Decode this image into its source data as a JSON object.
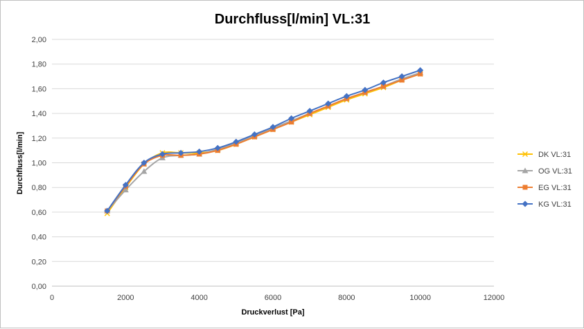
{
  "chart_data": {
    "type": "line",
    "title": "Durchfluss[l/min] VL:31",
    "xlabel": "Druckverlust [Pa]",
    "ylabel": "Durchfluss[l/min]",
    "xlim": [
      0,
      12000
    ],
    "ylim": [
      0,
      2.0
    ],
    "x_ticks": [
      0,
      2000,
      4000,
      6000,
      8000,
      10000,
      12000
    ],
    "x_tick_labels": [
      "0",
      "2000",
      "4000",
      "6000",
      "8000",
      "10000",
      "12000"
    ],
    "y_ticks": [
      0,
      0.2,
      0.4,
      0.6,
      0.8,
      1.0,
      1.2,
      1.4,
      1.6,
      1.8,
      2.0
    ],
    "y_tick_labels": [
      "0,00",
      "0,20",
      "0,40",
      "0,60",
      "0,80",
      "1,00",
      "1,20",
      "1,40",
      "1,60",
      "1,80",
      "2,00"
    ],
    "grid": "horizontal",
    "legend_position": "right",
    "x": [
      1500,
      2000,
      2500,
      3000,
      3500,
      4000,
      4500,
      5000,
      5500,
      6000,
      6500,
      7000,
      7500,
      8000,
      8500,
      9000,
      9500,
      10000
    ],
    "series": [
      {
        "name": "DK VL:31",
        "color": "#ffc000",
        "marker": "x",
        "values": [
          0.59,
          0.8,
          0.99,
          1.08,
          1.08,
          1.08,
          1.1,
          1.15,
          1.21,
          1.27,
          1.33,
          1.39,
          1.45,
          1.51,
          1.56,
          1.61,
          1.67,
          1.72
        ]
      },
      {
        "name": "OG VL:31",
        "color": "#a5a5a5",
        "marker": "triangle",
        "values": [
          0.61,
          0.78,
          0.93,
          1.04,
          1.06,
          1.07,
          1.11,
          1.16,
          1.22,
          1.28,
          1.34,
          1.4,
          1.46,
          1.52,
          1.57,
          1.62,
          1.68,
          1.73
        ]
      },
      {
        "name": "EG VL:31",
        "color": "#ed7d31",
        "marker": "square",
        "values": [
          0.61,
          0.81,
          0.99,
          1.06,
          1.06,
          1.07,
          1.1,
          1.15,
          1.21,
          1.27,
          1.33,
          1.4,
          1.46,
          1.52,
          1.57,
          1.62,
          1.67,
          1.72
        ]
      },
      {
        "name": "KG VL:31",
        "color": "#4472c4",
        "marker": "diamond",
        "values": [
          0.61,
          0.82,
          1.0,
          1.07,
          1.08,
          1.09,
          1.12,
          1.17,
          1.23,
          1.29,
          1.36,
          1.42,
          1.48,
          1.54,
          1.59,
          1.65,
          1.7,
          1.75
        ]
      }
    ]
  }
}
